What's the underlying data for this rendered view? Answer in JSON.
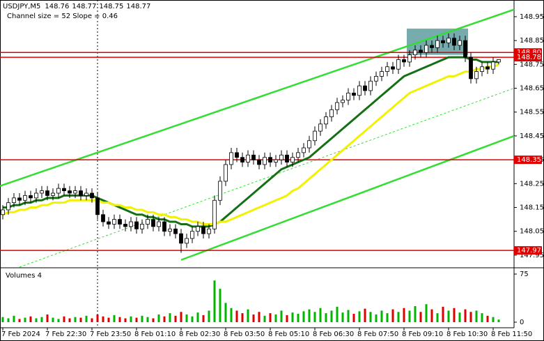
{
  "chart_data": {
    "type": "candlestick",
    "title": "USDJPY,M5",
    "subtitle": "Channel size = 52 Slope = 0.46",
    "categories": [
      "7 Feb 2024",
      null,
      null,
      null,
      null,
      null,
      null,
      null,
      "7 Feb 22:30",
      null,
      null,
      null,
      null,
      null,
      null,
      null,
      "7 Feb 23:50",
      null,
      null,
      null,
      null,
      null,
      null,
      null,
      "8 Feb 01:10",
      null,
      null,
      null,
      null,
      null,
      null,
      null,
      "8 Feb 02:30",
      null,
      null,
      null,
      null,
      null,
      null,
      null,
      "8 Feb 03:50",
      null,
      null,
      null,
      null,
      null,
      null,
      null,
      "8 Feb 05:10",
      null,
      null,
      null,
      null,
      null,
      null,
      null,
      "8 Feb 06:30",
      null,
      null,
      null,
      null,
      null,
      null,
      null,
      "8 Feb 07:50",
      null,
      null,
      null,
      null,
      null,
      null,
      null,
      "8 Feb 09:10",
      null,
      null,
      null,
      null,
      null,
      null,
      null,
      "8 Feb 10:30",
      null,
      null,
      null,
      null,
      null,
      null,
      null,
      "8 Feb 11:50",
      null
    ],
    "open": [
      148.12,
      148.14,
      148.17,
      148.19,
      148.18,
      148.2,
      148.19,
      148.21,
      148.22,
      148.2,
      148.21,
      148.23,
      148.22,
      148.21,
      148.22,
      148.2,
      148.21,
      148.19,
      148.12,
      148.09,
      148.08,
      148.1,
      148.08,
      148.07,
      148.09,
      148.06,
      148.08,
      148.1,
      148.07,
      148.09,
      148.05,
      148.06,
      148.04,
      148.0,
      148.02,
      148.05,
      148.07,
      148.04,
      148.06,
      148.18,
      148.26,
      148.33,
      148.38,
      148.36,
      148.34,
      148.37,
      148.35,
      148.33,
      148.36,
      148.34,
      148.35,
      148.37,
      148.34,
      148.36,
      148.38,
      148.4,
      148.43,
      148.47,
      148.5,
      148.53,
      148.56,
      148.59,
      148.6,
      148.63,
      148.62,
      148.66,
      148.64,
      148.68,
      148.7,
      148.72,
      148.74,
      148.73,
      148.77,
      148.76,
      148.79,
      148.81,
      148.8,
      148.83,
      148.82,
      148.85,
      148.84,
      148.86,
      148.83,
      148.85,
      148.78,
      148.69,
      148.72,
      148.74,
      148.73,
      148.76
    ],
    "high": [
      148.16,
      148.19,
      148.21,
      148.21,
      148.22,
      148.22,
      148.23,
      148.24,
      148.24,
      148.23,
      148.25,
      148.25,
      148.24,
      148.24,
      148.24,
      148.23,
      148.23,
      148.21,
      148.14,
      148.11,
      148.12,
      148.12,
      148.1,
      148.11,
      148.11,
      148.1,
      148.12,
      148.12,
      148.11,
      148.11,
      148.08,
      148.08,
      148.06,
      148.04,
      148.07,
      148.09,
      148.09,
      148.08,
      148.2,
      148.28,
      148.35,
      148.4,
      148.4,
      148.38,
      148.39,
      148.39,
      148.37,
      148.38,
      148.38,
      148.37,
      148.39,
      148.39,
      148.38,
      148.4,
      148.42,
      148.45,
      148.49,
      148.52,
      148.55,
      148.58,
      148.61,
      148.62,
      148.65,
      148.65,
      148.68,
      148.68,
      148.7,
      148.72,
      148.74,
      148.76,
      148.76,
      148.79,
      148.79,
      148.81,
      148.83,
      148.83,
      148.85,
      148.85,
      148.87,
      148.87,
      148.88,
      148.88,
      148.87,
      148.87,
      148.8,
      148.74,
      148.76,
      148.76,
      148.78,
      148.77
    ],
    "low": [
      148.1,
      148.12,
      148.15,
      148.16,
      148.16,
      148.17,
      148.17,
      148.19,
      148.18,
      148.18,
      148.19,
      148.2,
      148.19,
      148.19,
      148.18,
      148.18,
      148.17,
      148.1,
      148.07,
      148.06,
      148.06,
      148.06,
      148.05,
      148.05,
      148.04,
      148.04,
      148.06,
      148.05,
      148.05,
      148.03,
      148.03,
      148.02,
      147.96,
      147.98,
      148.0,
      148.03,
      148.02,
      148.02,
      148.04,
      148.16,
      148.24,
      148.31,
      148.34,
      148.32,
      148.32,
      148.33,
      148.31,
      148.31,
      148.32,
      148.32,
      148.33,
      148.32,
      148.32,
      148.34,
      148.36,
      148.38,
      148.41,
      148.45,
      148.48,
      148.51,
      148.54,
      148.57,
      148.58,
      148.6,
      148.6,
      148.62,
      148.62,
      148.66,
      148.68,
      148.7,
      148.71,
      148.71,
      148.74,
      148.74,
      148.77,
      148.78,
      148.78,
      148.8,
      148.8,
      148.82,
      148.82,
      148.81,
      148.81,
      148.76,
      148.67,
      148.67,
      148.7,
      148.71,
      148.71,
      148.75
    ],
    "close": [
      148.14,
      148.17,
      148.19,
      148.18,
      148.2,
      148.19,
      148.21,
      148.22,
      148.2,
      148.21,
      148.23,
      148.22,
      148.21,
      148.22,
      148.2,
      148.21,
      148.19,
      148.12,
      148.09,
      148.08,
      148.1,
      148.08,
      148.07,
      148.09,
      148.06,
      148.08,
      148.1,
      148.07,
      148.09,
      148.05,
      148.06,
      148.04,
      148.0,
      148.02,
      148.05,
      148.07,
      148.04,
      148.06,
      148.18,
      148.26,
      148.33,
      148.38,
      148.36,
      148.34,
      148.37,
      148.35,
      148.33,
      148.36,
      148.34,
      148.35,
      148.37,
      148.34,
      148.36,
      148.38,
      148.4,
      148.43,
      148.47,
      148.5,
      148.53,
      148.56,
      148.59,
      148.6,
      148.63,
      148.62,
      148.66,
      148.64,
      148.68,
      148.7,
      148.72,
      148.74,
      148.73,
      148.77,
      148.76,
      148.79,
      148.81,
      148.8,
      148.83,
      148.82,
      148.85,
      148.84,
      148.86,
      148.83,
      148.85,
      148.78,
      148.69,
      148.72,
      148.74,
      148.73,
      148.76,
      148.77
    ],
    "series": [
      {
        "color": "#157015",
        "width": 3,
        "values": [
          148.15,
          148.15,
          148.16,
          148.16,
          148.17,
          148.17,
          148.18,
          148.18,
          148.19,
          148.19,
          148.19,
          148.2,
          148.2,
          148.2,
          148.2,
          148.2,
          148.2,
          148.19,
          148.18,
          148.17,
          148.16,
          148.15,
          148.14,
          148.13,
          148.12,
          148.12,
          148.11,
          148.11,
          148.1,
          148.1,
          148.09,
          148.09,
          148.08,
          148.08,
          148.07,
          148.07,
          148.07,
          148.07,
          148.08,
          148.09,
          148.11,
          148.13,
          148.15,
          148.17,
          148.19,
          148.21,
          148.23,
          148.25,
          148.27,
          148.29,
          148.31,
          148.32,
          148.33,
          148.34,
          148.35,
          148.36,
          148.38,
          148.4,
          148.42,
          148.44,
          148.46,
          148.48,
          148.5,
          148.52,
          148.54,
          148.56,
          148.58,
          148.6,
          148.62,
          148.64,
          148.66,
          148.68,
          148.7,
          148.71,
          148.72,
          148.73,
          148.74,
          148.75,
          148.76,
          148.77,
          148.78,
          148.78,
          148.78,
          148.78,
          148.77,
          148.77,
          148.76,
          148.76,
          148.76,
          148.76
        ]
      },
      {
        "color": "#f2f200",
        "width": 3,
        "values": [
          148.12,
          148.13,
          148.13,
          148.14,
          148.14,
          148.15,
          148.15,
          148.16,
          148.16,
          148.17,
          148.17,
          148.17,
          148.18,
          148.18,
          148.18,
          148.18,
          148.18,
          148.18,
          148.17,
          148.17,
          148.16,
          148.16,
          148.15,
          148.15,
          148.14,
          148.14,
          148.13,
          148.13,
          148.12,
          148.12,
          148.11,
          148.11,
          148.1,
          148.1,
          148.09,
          148.09,
          148.08,
          148.08,
          148.08,
          148.09,
          148.09,
          148.1,
          148.11,
          148.12,
          148.13,
          148.14,
          148.15,
          148.16,
          148.17,
          148.18,
          148.19,
          148.2,
          148.22,
          148.23,
          148.25,
          148.27,
          148.29,
          148.31,
          148.33,
          148.35,
          148.37,
          148.39,
          148.41,
          148.43,
          148.45,
          148.47,
          148.49,
          148.51,
          148.53,
          148.55,
          148.57,
          148.59,
          148.61,
          148.63,
          148.64,
          148.65,
          148.66,
          148.67,
          148.68,
          148.69,
          148.7,
          148.7,
          148.71,
          148.72,
          148.72,
          148.73,
          148.73,
          148.74,
          148.74,
          148.75
        ]
      }
    ],
    "ylim": [
      147.9,
      149.02
    ],
    "yticks": [
      148.95,
      148.85,
      148.75,
      148.65,
      148.55,
      148.45,
      148.35,
      148.25,
      148.15,
      148.05,
      147.95
    ],
    "levels": [
      {
        "value": 148.8,
        "label": "148.80"
      },
      148.78,
      148.35,
      147.97
    ],
    "level_color": "#e00000",
    "highlight": {
      "start_index": 73,
      "end_index": 83,
      "low": 148.79,
      "high": 148.9,
      "color": "#5f9ea0"
    },
    "channel": {
      "color": "#33dd33",
      "upper": [
        [
          -0.5,
          148.24
        ],
        [
          91.75,
          148.98
        ]
      ],
      "lower": [
        [
          32,
          147.93
        ],
        [
          91.75,
          148.45
        ]
      ],
      "middle": [
        [
          3,
          147.9
        ],
        [
          91.75,
          148.65
        ]
      ]
    },
    "volumes": {
      "title": "Volumes 4",
      "values": [
        8,
        6,
        10,
        5,
        7,
        9,
        6,
        8,
        12,
        7,
        5,
        9,
        6,
        8,
        7,
        10,
        6,
        12,
        9,
        7,
        11,
        8,
        6,
        9,
        7,
        10,
        8,
        6,
        12,
        9,
        14,
        10,
        16,
        12,
        9,
        15,
        11,
        18,
        65,
        52,
        30,
        22,
        18,
        14,
        20,
        12,
        16,
        10,
        14,
        12,
        18,
        11,
        15,
        13,
        17,
        20,
        16,
        22,
        14,
        18,
        24,
        15,
        19,
        13,
        17,
        21,
        16,
        12,
        18,
        14,
        20,
        16,
        22,
        18,
        25,
        16,
        28,
        20,
        14,
        24,
        18,
        22,
        15,
        20,
        16,
        18,
        14,
        10,
        8,
        4
      ],
      "ylim": [
        0,
        75
      ],
      "yticks": [
        75,
        0
      ],
      "up_color": "#00b400",
      "down_color": "#e00000"
    }
  }
}
